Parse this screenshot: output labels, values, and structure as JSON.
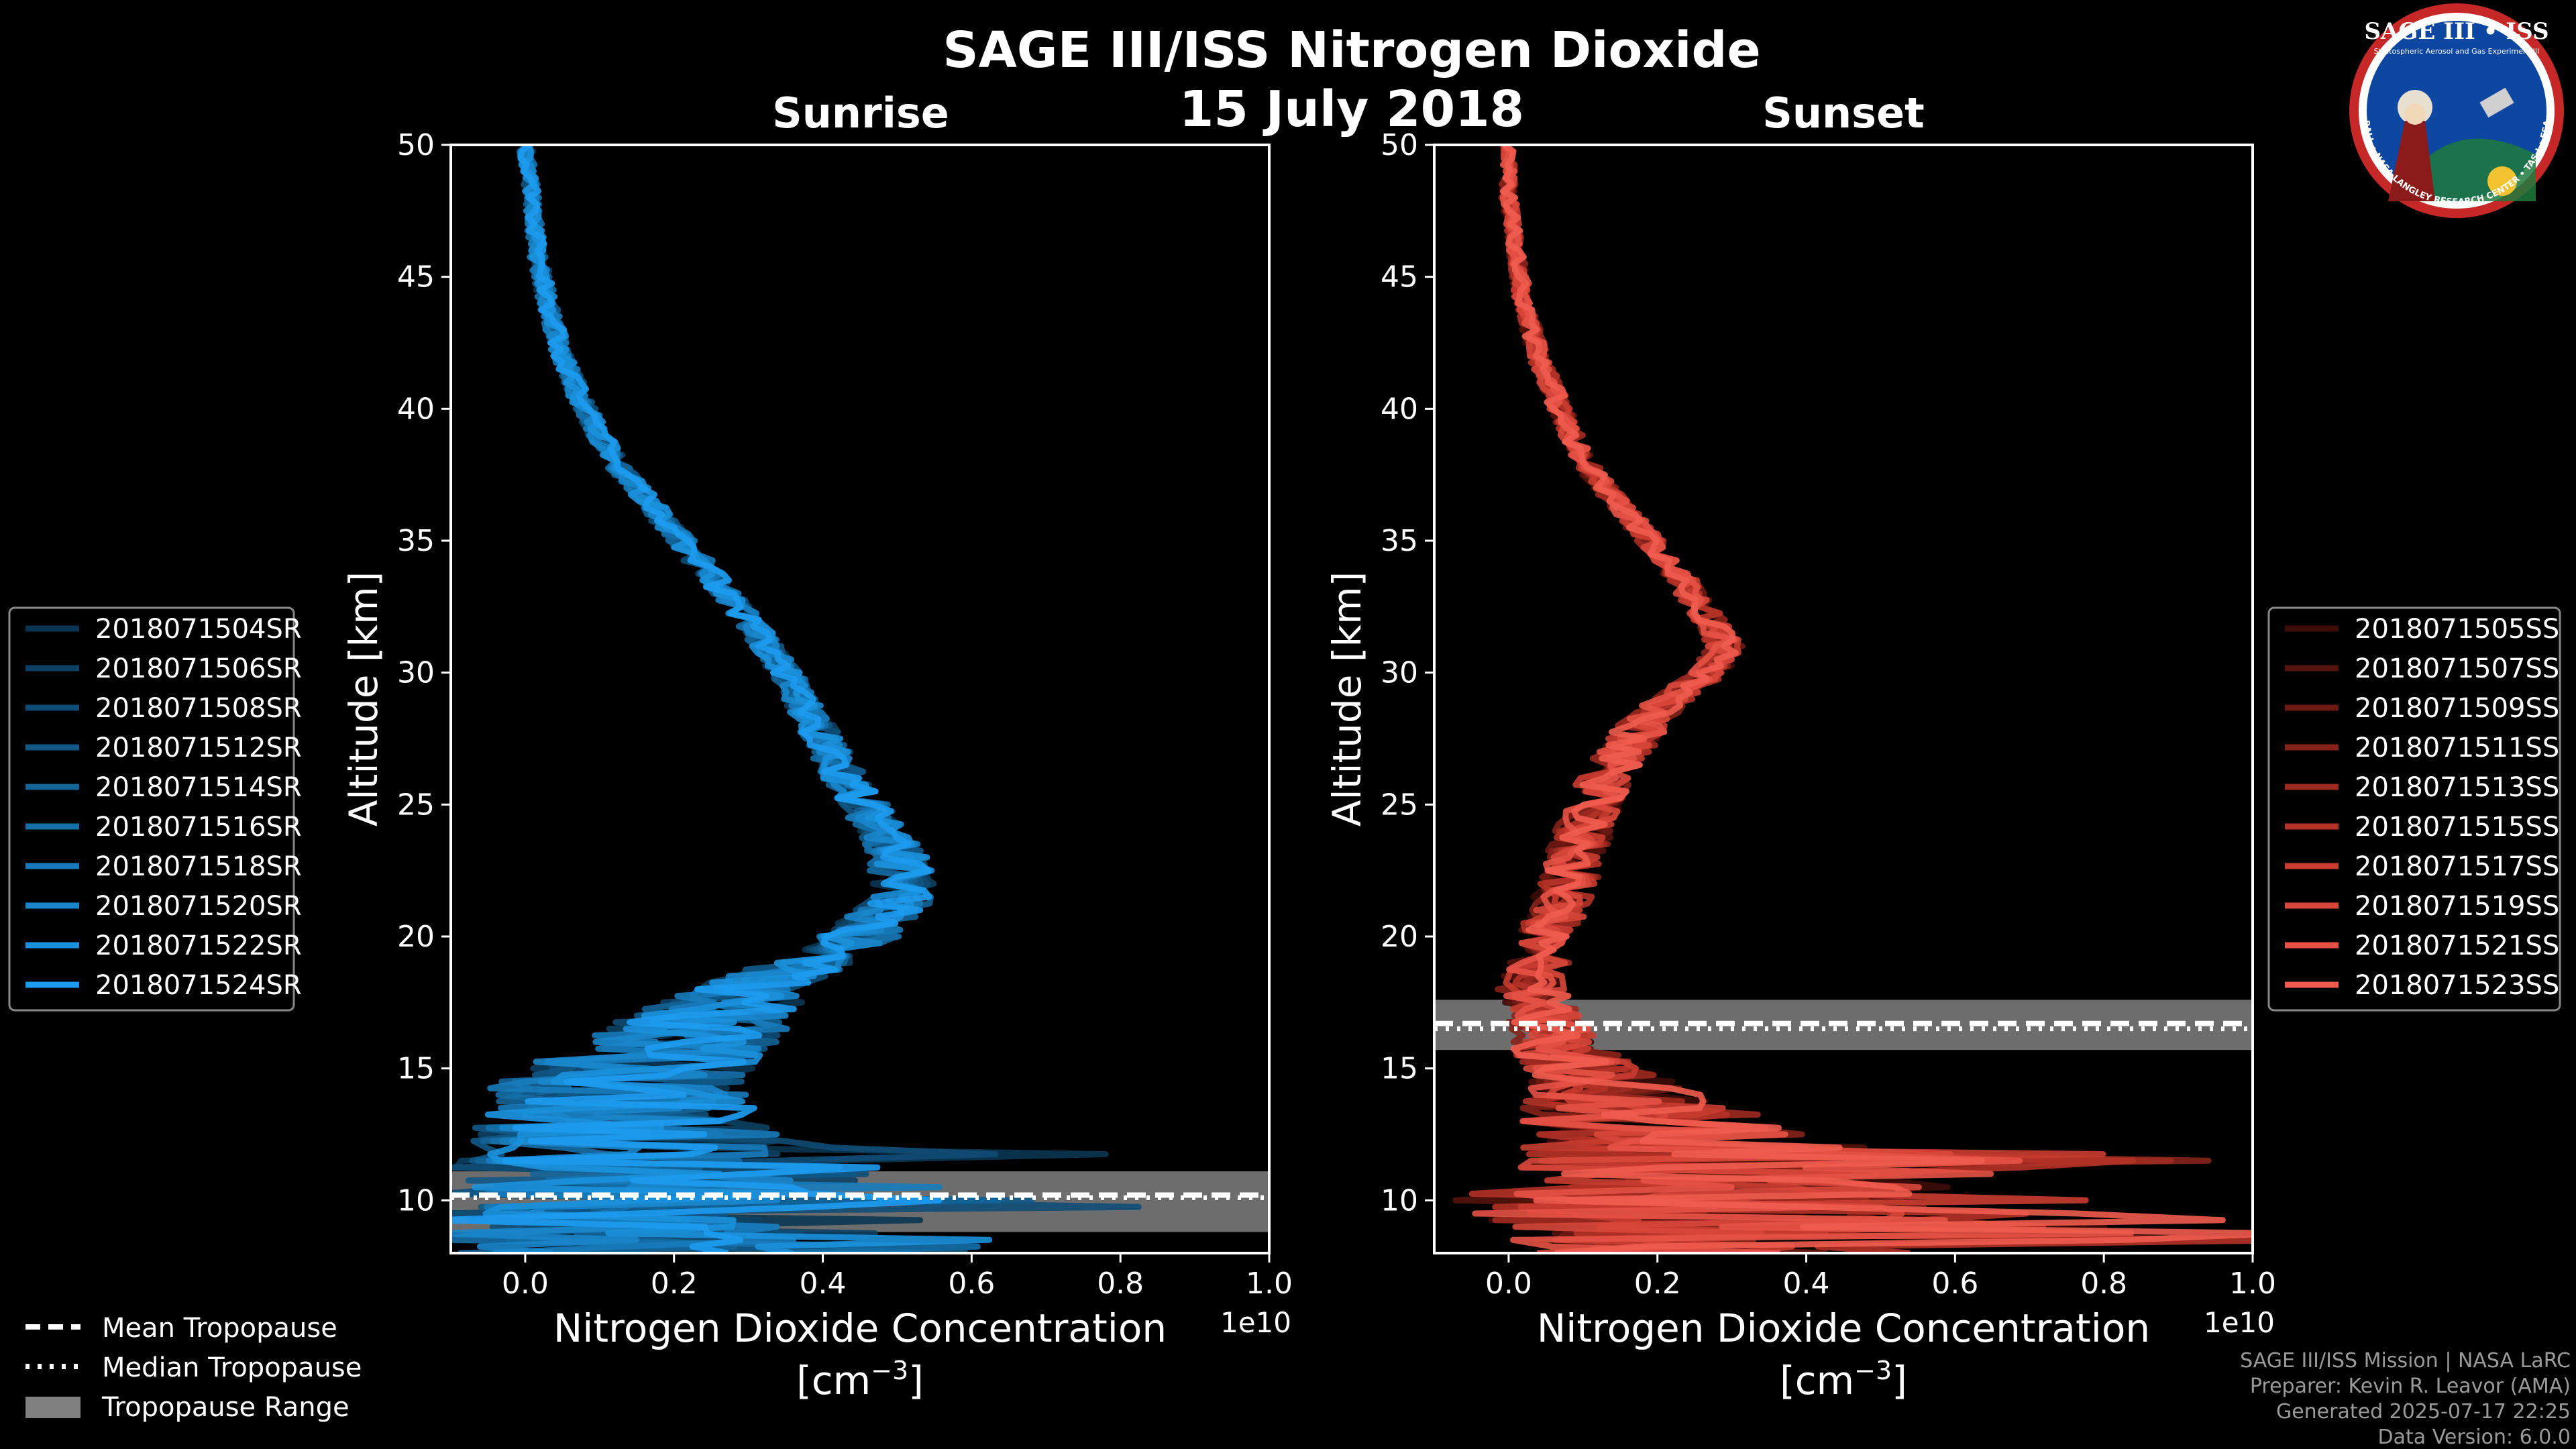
{
  "title": "SAGE III/ISS Nitrogen Dioxide",
  "date": "15 July 2018",
  "logo": {
    "title": "SAGE III • ISS",
    "subtitle": "Stratospheric Aerosol and Gas Experiment III",
    "ring_text": "BALL • NASA LANGLEY RESEARCH CENTER • TAS-I • ESA",
    "colors": {
      "ring": "#c62828",
      "inner": "#0d47a1",
      "gold": "#f2c230"
    }
  },
  "footer": {
    "lines": [
      "SAGE III/ISS Mission | NASA LaRC",
      "Preparer: Kevin R. Leavor (AMA)",
      "Generated 2025-07-17 22:25",
      "Data Version: 6.0.0"
    ]
  },
  "tropopause_legend": [
    {
      "label": "Mean Tropopause",
      "style": "dashed"
    },
    {
      "label": "Median Tropopause",
      "style": "dotted"
    },
    {
      "label": "Tropopause Range",
      "style": "patch",
      "color": "#808080"
    }
  ],
  "chart_data": [
    {
      "type": "line",
      "title": "Sunrise",
      "xlabel": "Nitrogen Dioxide Concentration",
      "xlabel_unit": "[cm",
      "xlabel_unit_sup": "−3",
      "xlabel_unit_end": "]",
      "ylabel": "Altitude [km]",
      "offset_text": "1e10",
      "xlim": [
        -0.1,
        1.0
      ],
      "ylim": [
        8,
        50
      ],
      "xticks": [
        0.0,
        0.2,
        0.4,
        0.6,
        0.8,
        1.0
      ],
      "xtick_labels": [
        "0.0",
        "0.2",
        "0.4",
        "0.6",
        "0.8",
        "1.0"
      ],
      "yticks": [
        10,
        15,
        20,
        25,
        30,
        35,
        40,
        45,
        50
      ],
      "ytick_labels": [
        "10",
        "15",
        "20",
        "25",
        "30",
        "35",
        "40",
        "45",
        "50"
      ],
      "tropopause": {
        "mean": 10.2,
        "median": 10.1,
        "range": [
          8.8,
          11.1
        ]
      },
      "profile": {
        "altitudes": [
          50,
          48,
          46,
          44,
          42,
          40,
          38,
          36,
          34,
          32,
          30,
          28,
          26,
          24,
          23,
          22,
          21,
          20,
          19,
          18,
          17,
          16,
          15,
          14,
          13,
          12,
          11,
          10,
          9
        ],
        "means": [
          0.0,
          0.01,
          0.015,
          0.03,
          0.05,
          0.08,
          0.12,
          0.18,
          0.24,
          0.3,
          0.35,
          0.39,
          0.43,
          0.48,
          0.5,
          0.51,
          0.49,
          0.45,
          0.38,
          0.3,
          0.25,
          0.2,
          0.15,
          0.12,
          0.12,
          0.14,
          0.12,
          0.14,
          0.12
        ],
        "spreads": [
          0.01,
          0.01,
          0.012,
          0.012,
          0.014,
          0.015,
          0.016,
          0.018,
          0.02,
          0.02,
          0.022,
          0.025,
          0.03,
          0.035,
          0.04,
          0.045,
          0.05,
          0.055,
          0.06,
          0.08,
          0.12,
          0.14,
          0.16,
          0.18,
          0.2,
          0.22,
          0.25,
          0.28,
          0.25
        ]
      },
      "series": [
        {
          "name": "2018071504SR",
          "color": "#0b3652"
        },
        {
          "name": "2018071506SR",
          "color": "#0d4163"
        },
        {
          "name": "2018071508SR",
          "color": "#0f4c75"
        },
        {
          "name": "2018071512SR",
          "color": "#115886"
        },
        {
          "name": "2018071514SR",
          "color": "#136498"
        },
        {
          "name": "2018071516SR",
          "color": "#156fa9"
        },
        {
          "name": "2018071518SR",
          "color": "#177bbb"
        },
        {
          "name": "2018071520SR",
          "color": "#1986cc"
        },
        {
          "name": "2018071522SR",
          "color": "#1b91dd"
        },
        {
          "name": "2018071524SR",
          "color": "#1d9bef"
        }
      ]
    },
    {
      "type": "line",
      "title": "Sunset",
      "xlabel": "Nitrogen Dioxide Concentration",
      "xlabel_unit": "[cm",
      "xlabel_unit_sup": "−3",
      "xlabel_unit_end": "]",
      "ylabel": "Altitude [km]",
      "offset_text": "1e10",
      "xlim": [
        -0.1,
        1.0
      ],
      "ylim": [
        8,
        50
      ],
      "xticks": [
        0.0,
        0.2,
        0.4,
        0.6,
        0.8,
        1.0
      ],
      "xtick_labels": [
        "0.0",
        "0.2",
        "0.4",
        "0.6",
        "0.8",
        "1.0"
      ],
      "yticks": [
        10,
        15,
        20,
        25,
        30,
        35,
        40,
        45,
        50
      ],
      "ytick_labels": [
        "10",
        "15",
        "20",
        "25",
        "30",
        "35",
        "40",
        "45",
        "50"
      ],
      "tropopause": {
        "mean": 16.7,
        "median": 16.5,
        "range": [
          15.7,
          17.6
        ]
      },
      "profile": {
        "altitudes": [
          50,
          48,
          46,
          44,
          42,
          40,
          38,
          36,
          34,
          32,
          31,
          30,
          29,
          28,
          26,
          24,
          22,
          20,
          18,
          16,
          15,
          14,
          13,
          12,
          11,
          10,
          9
        ],
        "means": [
          0.0,
          0.0,
          0.01,
          0.02,
          0.04,
          0.07,
          0.1,
          0.16,
          0.22,
          0.27,
          0.29,
          0.27,
          0.22,
          0.18,
          0.13,
          0.1,
          0.08,
          0.05,
          0.03,
          0.06,
          0.1,
          0.15,
          0.18,
          0.25,
          0.3,
          0.25,
          0.3
        ],
        "spreads": [
          0.008,
          0.01,
          0.01,
          0.012,
          0.014,
          0.015,
          0.016,
          0.018,
          0.02,
          0.022,
          0.025,
          0.025,
          0.03,
          0.035,
          0.04,
          0.04,
          0.04,
          0.04,
          0.045,
          0.06,
          0.08,
          0.12,
          0.18,
          0.25,
          0.3,
          0.35,
          0.3
        ]
      },
      "series": [
        {
          "name": "2018071505SS",
          "color": "#3d0c08"
        },
        {
          "name": "2018071507SS",
          "color": "#55130d"
        },
        {
          "name": "2018071509SS",
          "color": "#6d1a13"
        },
        {
          "name": "2018071511SS",
          "color": "#852219"
        },
        {
          "name": "2018071513SS",
          "color": "#9d2a20"
        },
        {
          "name": "2018071515SS",
          "color": "#b53227"
        },
        {
          "name": "2018071517SS",
          "color": "#c93c30"
        },
        {
          "name": "2018071519SS",
          "color": "#d8473a"
        },
        {
          "name": "2018071521SS",
          "color": "#e55245"
        },
        {
          "name": "2018071523SS",
          "color": "#ef5c4e"
        }
      ]
    }
  ]
}
